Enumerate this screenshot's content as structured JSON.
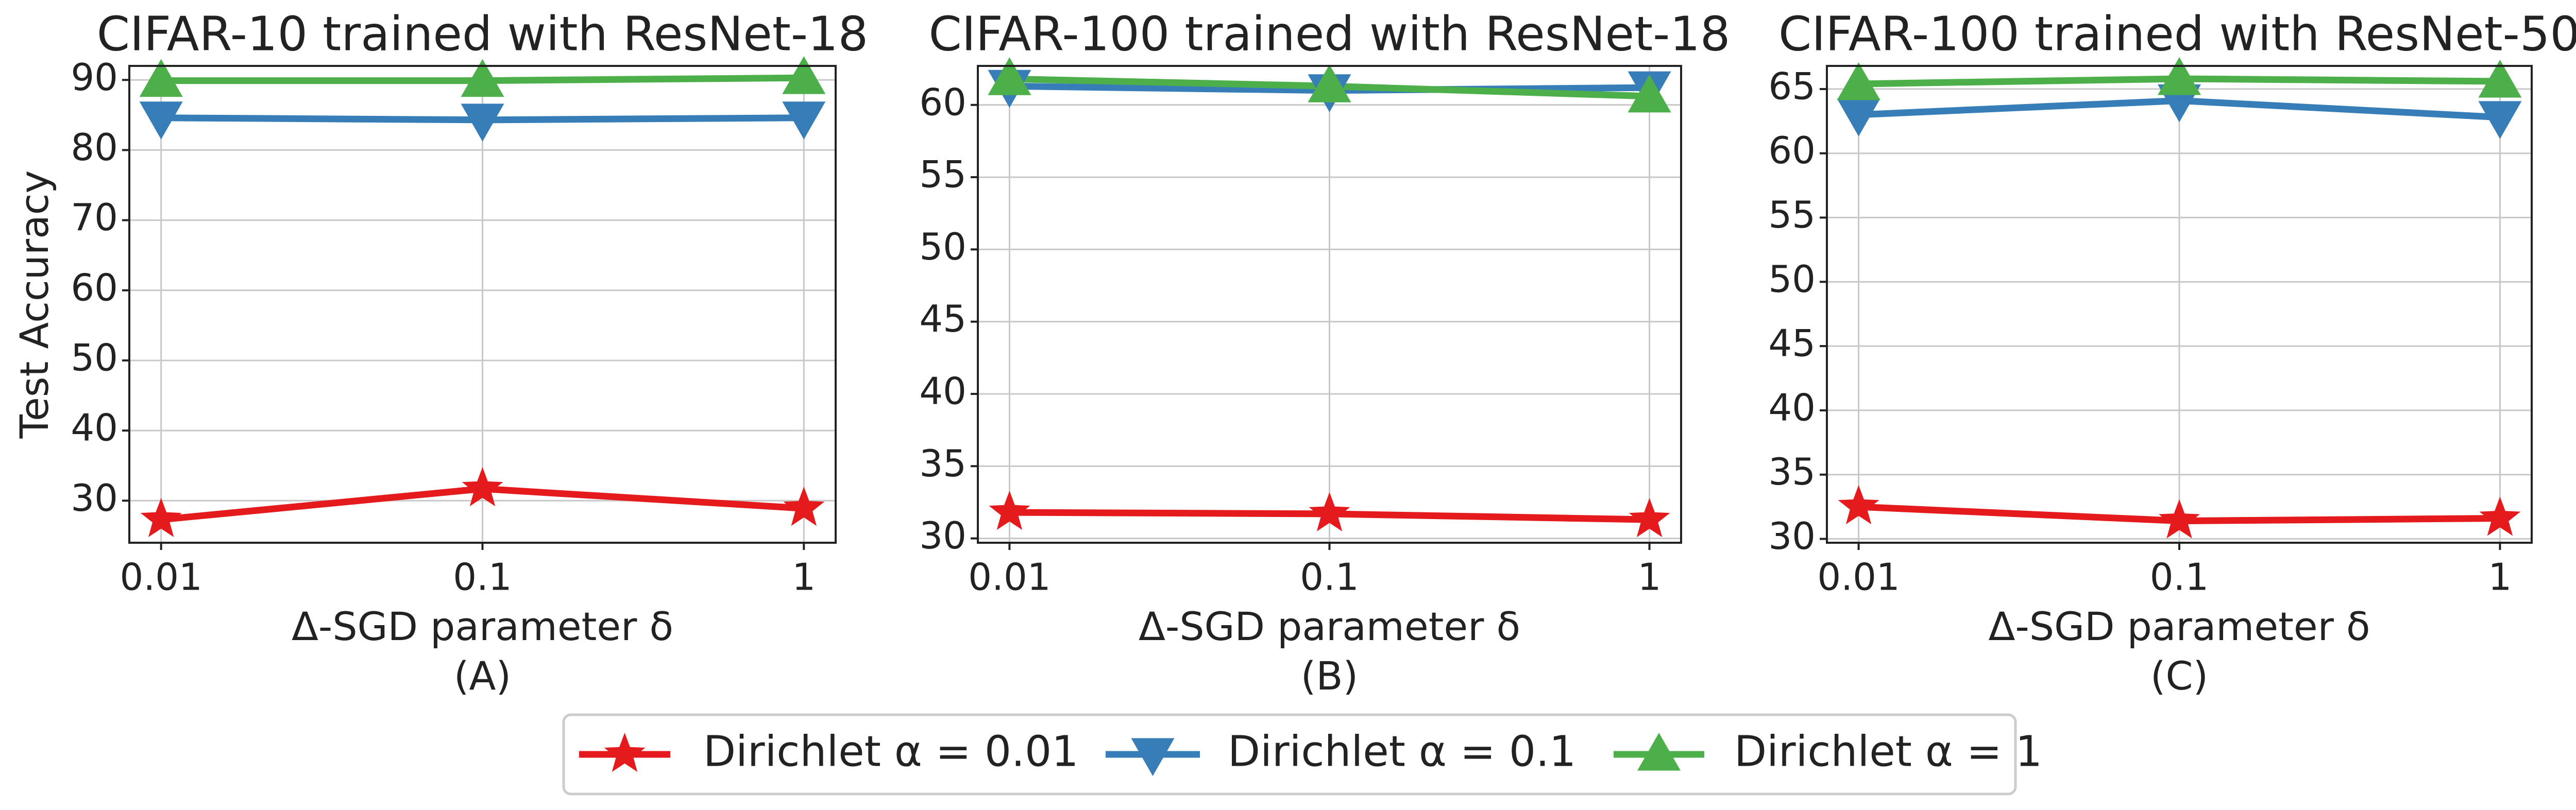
{
  "chart_data": [
    {
      "type": "line",
      "title": "CIFAR-10 trained with ResNet-18",
      "xlabel": "Δ-SGD parameter δ",
      "ylabel": "Test Accuracy",
      "panel_label": "(A)",
      "categories": [
        "0.01",
        "0.1",
        "1"
      ],
      "ylim": [
        24,
        92
      ],
      "yticks": [
        30,
        40,
        50,
        60,
        70,
        80,
        90
      ],
      "grid": true,
      "series": [
        {
          "name": "Dirichlet α = 0.01",
          "color": "#e41a1c",
          "marker": "star",
          "values": [
            27.3,
            31.7,
            28.9
          ]
        },
        {
          "name": "Dirichlet α = 0.1",
          "color": "#377eb8",
          "marker": "triangle-down",
          "values": [
            84.6,
            84.3,
            84.6
          ]
        },
        {
          "name": "Dirichlet α = 1",
          "color": "#4daf4a",
          "marker": "triangle-up",
          "values": [
            89.9,
            89.9,
            90.3
          ]
        }
      ]
    },
    {
      "type": "line",
      "title": "CIFAR-100 trained with ResNet-18",
      "xlabel": "Δ-SGD parameter δ",
      "panel_label": "(B)",
      "categories": [
        "0.01",
        "0.1",
        "1"
      ],
      "ylim": [
        29.7,
        62.7
      ],
      "yticks": [
        30,
        35,
        40,
        45,
        50,
        55,
        60
      ],
      "grid": true,
      "series": [
        {
          "color": "#e41a1c",
          "marker": "star",
          "values": [
            31.8,
            31.7,
            31.3
          ]
        },
        {
          "color": "#377eb8",
          "marker": "triangle-down",
          "values": [
            61.3,
            61.0,
            61.2
          ]
        },
        {
          "color": "#4daf4a",
          "marker": "triangle-up",
          "values": [
            61.8,
            61.3,
            60.6
          ]
        }
      ]
    },
    {
      "type": "line",
      "title": "CIFAR-100 trained with ResNet-50",
      "xlabel": "Δ-SGD parameter δ",
      "panel_label": "(C)",
      "categories": [
        "0.01",
        "0.1",
        "1"
      ],
      "ylim": [
        29.7,
        66.8
      ],
      "yticks": [
        30,
        35,
        40,
        45,
        50,
        55,
        60,
        65
      ],
      "grid": true,
      "series": [
        {
          "color": "#e41a1c",
          "marker": "star",
          "values": [
            32.5,
            31.4,
            31.6
          ]
        },
        {
          "color": "#377eb8",
          "marker": "triangle-down",
          "values": [
            63.0,
            64.1,
            62.8
          ]
        },
        {
          "color": "#4daf4a",
          "marker": "triangle-up",
          "values": [
            65.4,
            65.8,
            65.6
          ]
        }
      ]
    }
  ]
}
